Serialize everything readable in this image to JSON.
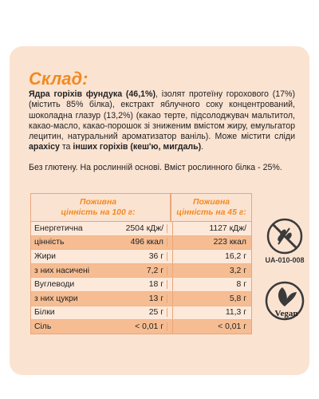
{
  "title": "Склад:",
  "ingredients": [
    {
      "text": "Ядра горіхів фундука (46,1%)",
      "bold": true
    },
    {
      "text": ", ізолят протеїну горохового (17%) (містить 85% білка), екстракт яблучного соку концентрований, шоколадна глазур (13,2%) (какао терте, підсолоджувач мальтитол, какао-масло, какао-порошок зі зниженим вмістом жиру, емульгатор лецитин, натуральний ароматизатор ваніль). Може містити сліди ",
      "bold": false
    },
    {
      "text": "арахісу",
      "bold": true
    },
    {
      "text": " та ",
      "bold": false
    },
    {
      "text": "інших горіхів (кеш'ю, мигдаль)",
      "bold": true
    },
    {
      "text": ".",
      "bold": false
    }
  ],
  "note": "Без глютену. На рослинній основі. Вміст рослинного білка - 25%.",
  "table": {
    "header": [
      [
        "Поживна",
        "цінність на 100 г:"
      ],
      [
        "Поживна",
        "цінність на 45 г:"
      ]
    ],
    "rows": [
      [
        "Енергетична",
        "2504 кДж/",
        "1127 кДж/"
      ],
      [
        "цінність",
        "496 ккал",
        "223 ккал"
      ],
      [
        "Жири",
        "36 г",
        "16,2 г"
      ],
      [
        "з них насичені",
        "7,2 г",
        "3,2 г"
      ],
      [
        "Вуглеводи",
        "18 г",
        "8 г"
      ],
      [
        "з них цукри",
        "13 г",
        "5,8 г"
      ],
      [
        "Білки",
        "25 г",
        "11,3 г"
      ],
      [
        "Сіль",
        "< 0,01 г",
        "< 0,01 г"
      ]
    ]
  },
  "certificate": "UA-010-008",
  "vegan": "Vegan"
}
